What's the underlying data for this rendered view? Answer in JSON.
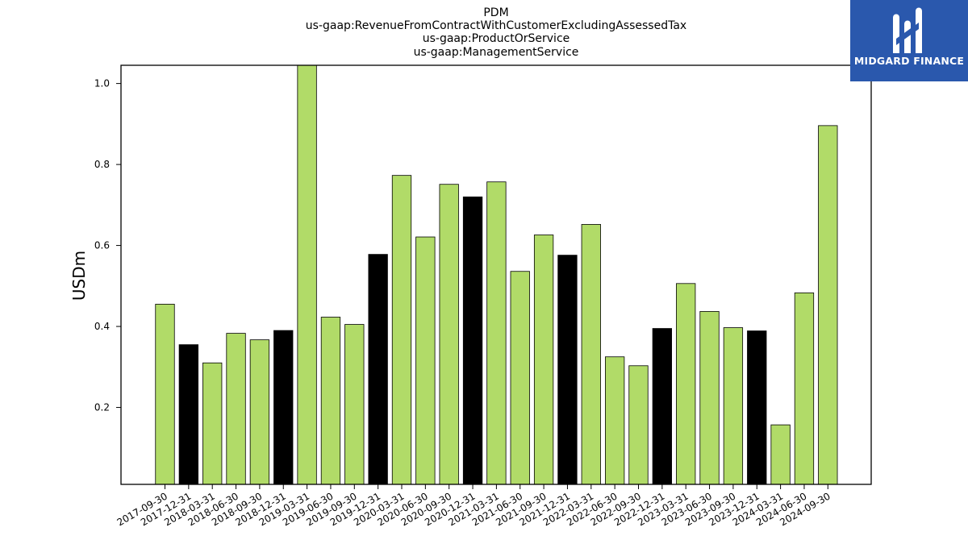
{
  "chart_data": {
    "type": "bar",
    "title_lines": [
      "PDM",
      "us-gaap:RevenueFromContractWithCustomerExcludingAssessedTax",
      "us-gaap:ProductOrService",
      "us-gaap:ManagementService"
    ],
    "xlabel": "",
    "ylabel": "USDm",
    "ylim": [
      0.01,
      1.045
    ],
    "yticks": [
      0.2,
      0.4,
      0.6,
      0.8,
      1.0
    ],
    "ytick_labels": [
      "0.2",
      "0.4",
      "0.6",
      "0.8",
      "1.0"
    ],
    "categories": [
      "2017-09-30",
      "2017-12-31",
      "2018-03-31",
      "2018-06-30",
      "2018-09-30",
      "2018-12-31",
      "2019-03-31",
      "2019-06-30",
      "2019-09-30",
      "2019-12-31",
      "2020-03-31",
      "2020-06-30",
      "2020-09-30",
      "2020-12-31",
      "2021-03-31",
      "2021-06-30",
      "2021-09-30",
      "2021-12-31",
      "2022-03-31",
      "2022-06-30",
      "2022-09-30",
      "2022-12-31",
      "2023-03-31",
      "2023-06-30",
      "2023-09-30",
      "2023-12-31",
      "2024-03-31",
      "2024-06-30",
      "2024-09-30"
    ],
    "values": [
      0.455,
      0.355,
      0.31,
      0.383,
      0.367,
      0.39,
      1.045,
      0.423,
      0.405,
      0.578,
      0.773,
      0.621,
      0.751,
      0.72,
      0.757,
      0.536,
      0.626,
      0.576,
      0.652,
      0.325,
      0.303,
      0.395,
      0.506,
      0.437,
      0.397,
      0.389,
      0.157,
      0.483,
      0.896
    ],
    "bar_colors": [
      "#b1db68",
      "#000000",
      "#b1db68",
      "#b1db68",
      "#b1db68",
      "#000000",
      "#b1db68",
      "#b1db68",
      "#b1db68",
      "#000000",
      "#b1db68",
      "#b1db68",
      "#b1db68",
      "#000000",
      "#b1db68",
      "#b1db68",
      "#b1db68",
      "#000000",
      "#b1db68",
      "#b1db68",
      "#b1db68",
      "#000000",
      "#b1db68",
      "#b1db68",
      "#b1db68",
      "#000000",
      "#b1db68",
      "#b1db68",
      "#b1db68"
    ],
    "colors": {
      "quarter": "#b1db68",
      "year_end": "#000000",
      "edge": "#000000"
    },
    "grid": false,
    "legend": "none"
  },
  "logo": {
    "text": "MIDGARD FINANCE",
    "background": "#2a58ad",
    "icon": "midgard-logo-icon"
  }
}
